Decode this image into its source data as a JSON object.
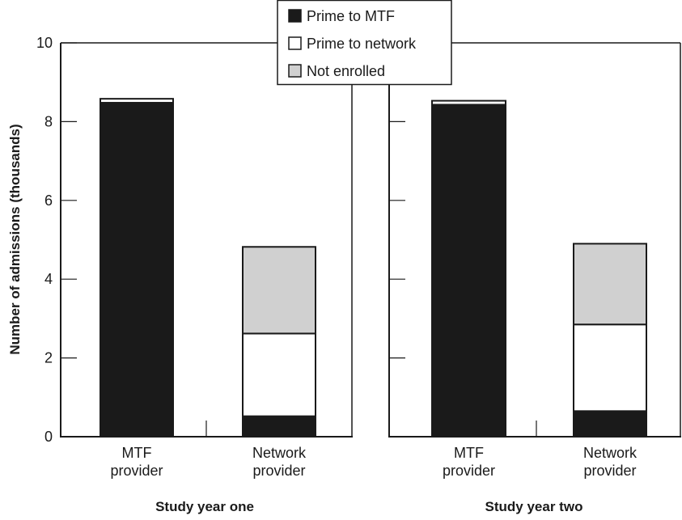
{
  "chart_data": {
    "type": "bar",
    "stacked": true,
    "ylabel": "Number of  admissions (thousands)",
    "ylim": [
      0,
      10
    ],
    "yticks": [
      "0",
      "2",
      "4",
      "6",
      "8",
      "10"
    ],
    "categories": [
      "MTF provider",
      "Network provider"
    ],
    "category_lines": [
      [
        "MTF",
        "provider"
      ],
      [
        "Network",
        "provider"
      ]
    ],
    "groups": [
      {
        "title": "Study year one",
        "series": [
          {
            "name": "Prime to MTF",
            "values": [
              8.48,
              0.52
            ]
          },
          {
            "name": "Prime to network",
            "values": [
              0.1,
              2.1
            ]
          },
          {
            "name": "Not enrolled",
            "values": [
              0,
              2.2
            ]
          }
        ]
      },
      {
        "title": "Study year two",
        "series": [
          {
            "name": "Prime to MTF",
            "values": [
              8.43,
              0.65
            ]
          },
          {
            "name": "Prime to network",
            "values": [
              0.1,
              2.2
            ]
          },
          {
            "name": "Not enrolled",
            "values": [
              0,
              2.05
            ]
          }
        ]
      }
    ],
    "legend": {
      "position": "top-center",
      "items": [
        {
          "name": "Prime to MTF",
          "color": "#1a1a1a"
        },
        {
          "name": "Prime to network",
          "color": "#ffffff"
        },
        {
          "name": "Not enrolled",
          "color": "#d0d0d0"
        }
      ]
    },
    "grid": false
  }
}
